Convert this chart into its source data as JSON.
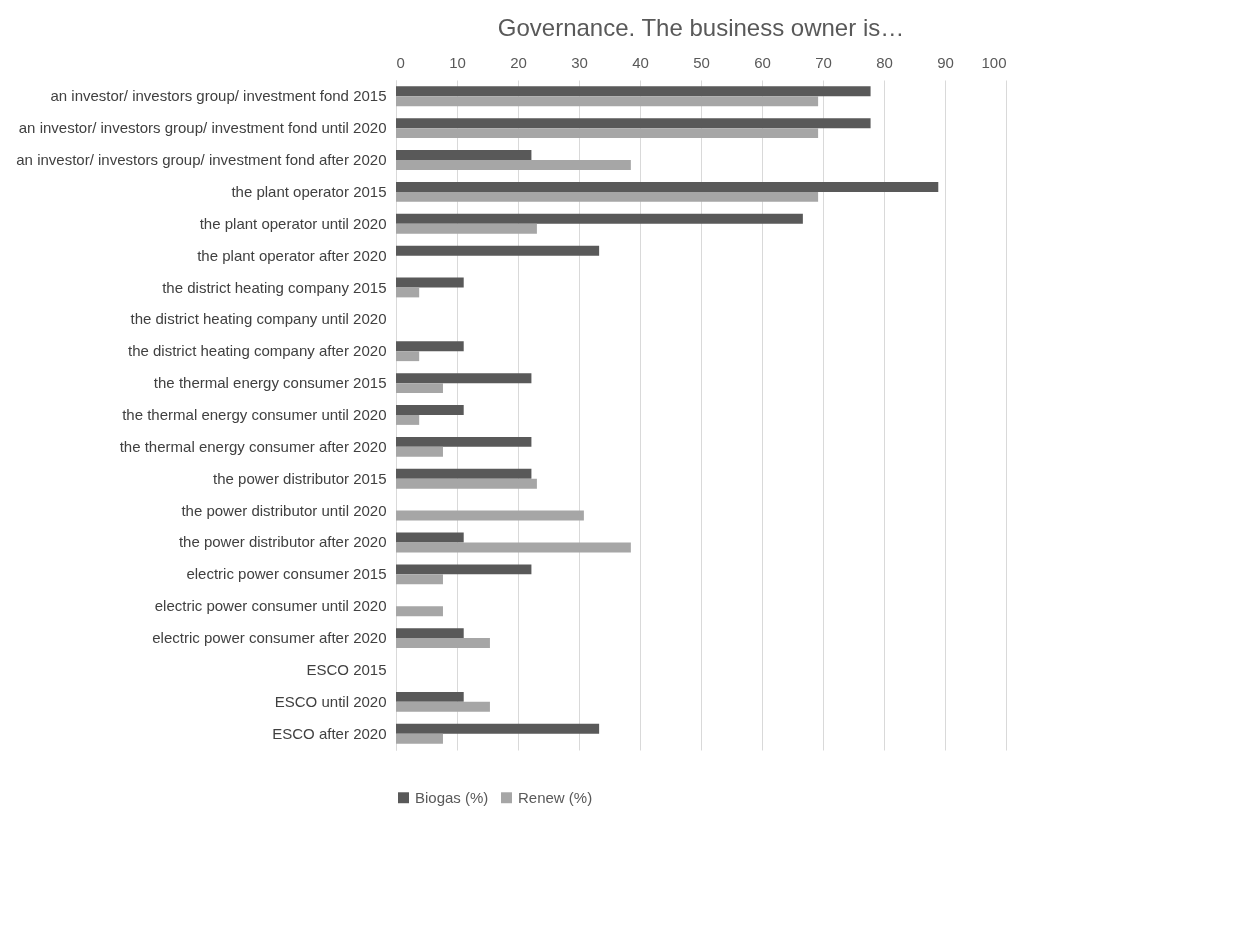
{
  "chart_data": {
    "type": "bar",
    "orientation": "horizontal",
    "title": "Governance. The business owner is…",
    "categories": [
      "an investor/ investors group/ investment fond 2015",
      "an investor/ investors group/ investment fond until 2020",
      "an investor/ investors group/ investment fond after 2020",
      "the plant operator 2015",
      "the plant operator until 2020",
      "the plant operator after 2020",
      "the district heating company 2015",
      "the district heating company until 2020",
      "the district heating company after 2020",
      "the thermal energy consumer 2015",
      "the thermal energy consumer until 2020",
      "the thermal energy consumer after 2020",
      "the power distributor 2015",
      "the power distributor until 2020",
      "the power distributor after 2020",
      "electric power consumer 2015",
      "electric power consumer until 2020",
      "electric power consumer after 2020",
      "ESCO 2015",
      "ESCO until 2020",
      "ESCO after 2020"
    ],
    "series": [
      {
        "name": "Biogas (%)",
        "color": "#595959",
        "values": [
          77.8,
          77.8,
          22.2,
          88.9,
          66.7,
          33.3,
          11.1,
          0,
          11.1,
          22.2,
          11.1,
          22.2,
          22.2,
          0,
          11.1,
          22.2,
          0,
          11.1,
          0,
          11.1,
          33.3
        ]
      },
      {
        "name": "Renew (%)",
        "color": "#a6a6a6",
        "values": [
          69.2,
          69.2,
          38.5,
          69.2,
          23.1,
          0,
          3.8,
          0,
          3.8,
          7.7,
          3.8,
          7.7,
          23.1,
          30.8,
          38.5,
          7.7,
          7.7,
          15.4,
          0,
          15.4,
          7.7
        ]
      }
    ],
    "xlim": [
      0,
      100
    ],
    "xticks": [
      0,
      10,
      20,
      30,
      40,
      50,
      60,
      70,
      80,
      90,
      100
    ],
    "grid": "x",
    "legend": "bottom"
  }
}
